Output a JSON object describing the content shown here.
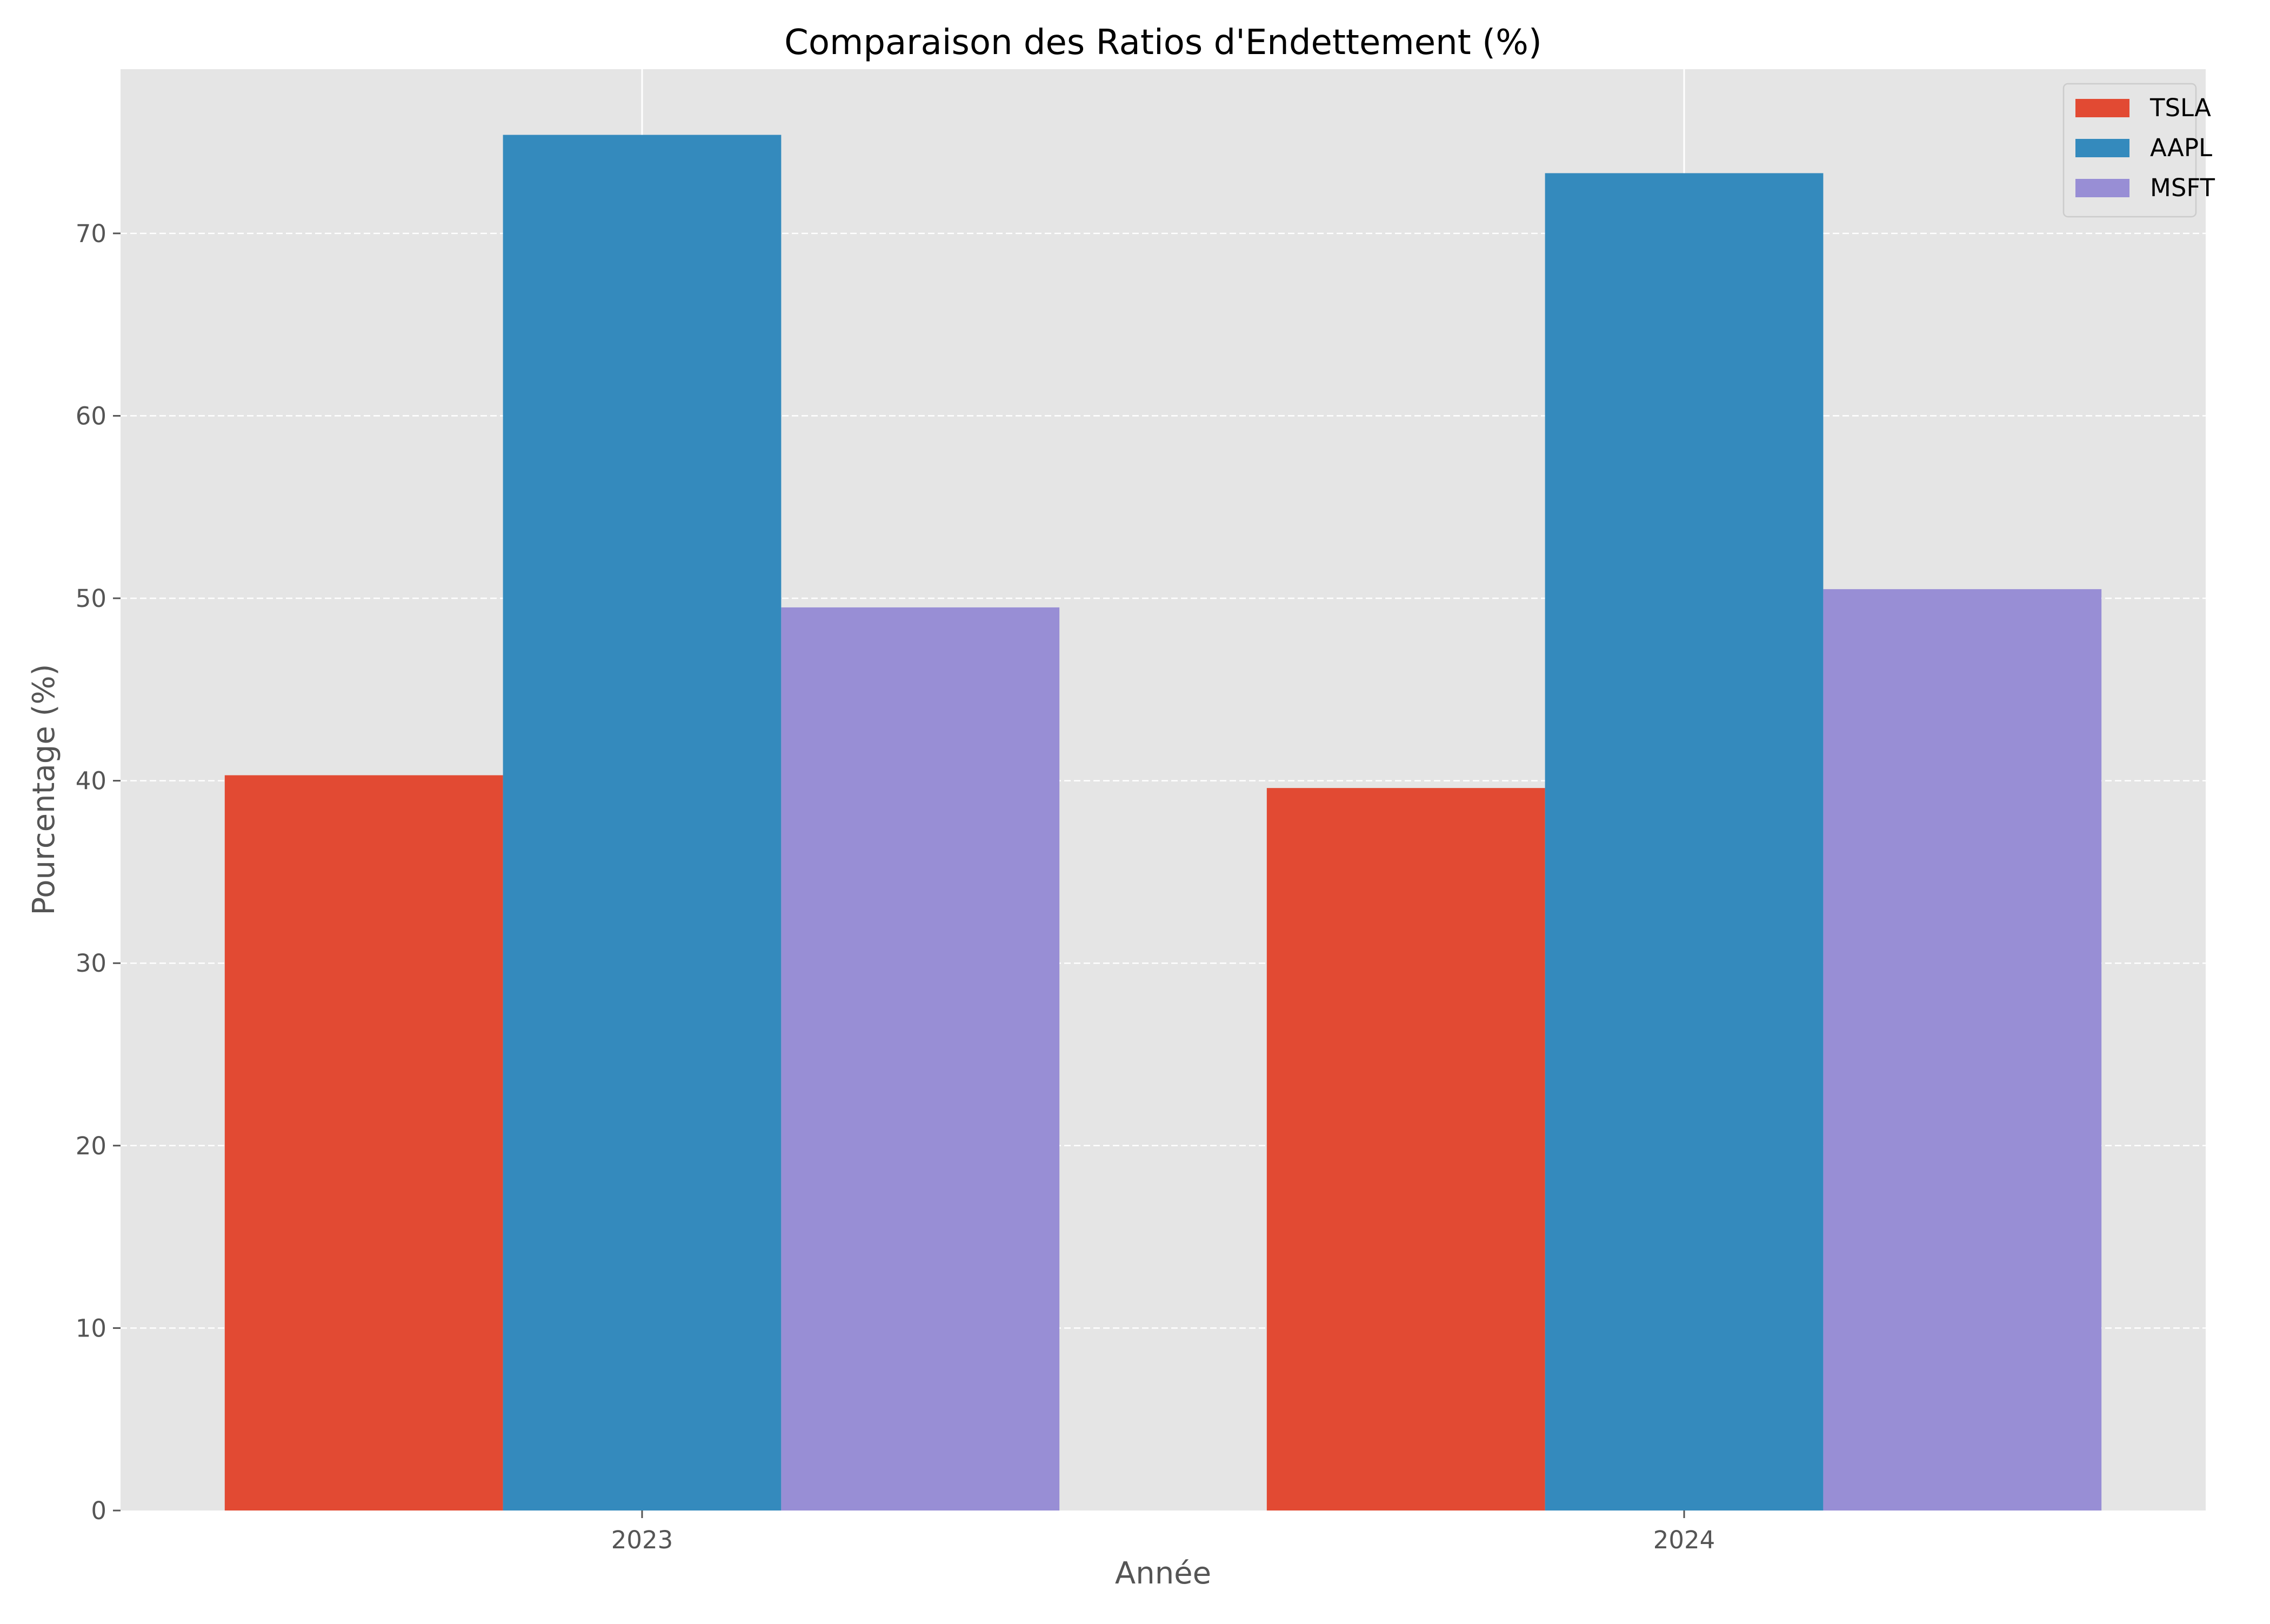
{
  "chart_data": {
    "type": "bar",
    "title": "Comparaison des Ratios d'Endettement (%)",
    "xlabel": "Année",
    "ylabel": "Pourcentage (%)",
    "categories": [
      "2023",
      "2024"
    ],
    "series": [
      {
        "name": "TSLA",
        "color": "#E24A33",
        "values": [
          40.3,
          39.6
        ]
      },
      {
        "name": "AAPL",
        "color": "#348ABD",
        "values": [
          75.4,
          73.3
        ]
      },
      {
        "name": "MSFT",
        "color": "#988ED5",
        "values": [
          49.5,
          50.5
        ]
      }
    ],
    "ylim": [
      0,
      79
    ],
    "yticks": [
      0,
      10,
      20,
      30,
      40,
      50,
      60,
      70
    ],
    "grid": "horizontal dashed",
    "legend": "top-right",
    "background": "#E5E5E5"
  }
}
